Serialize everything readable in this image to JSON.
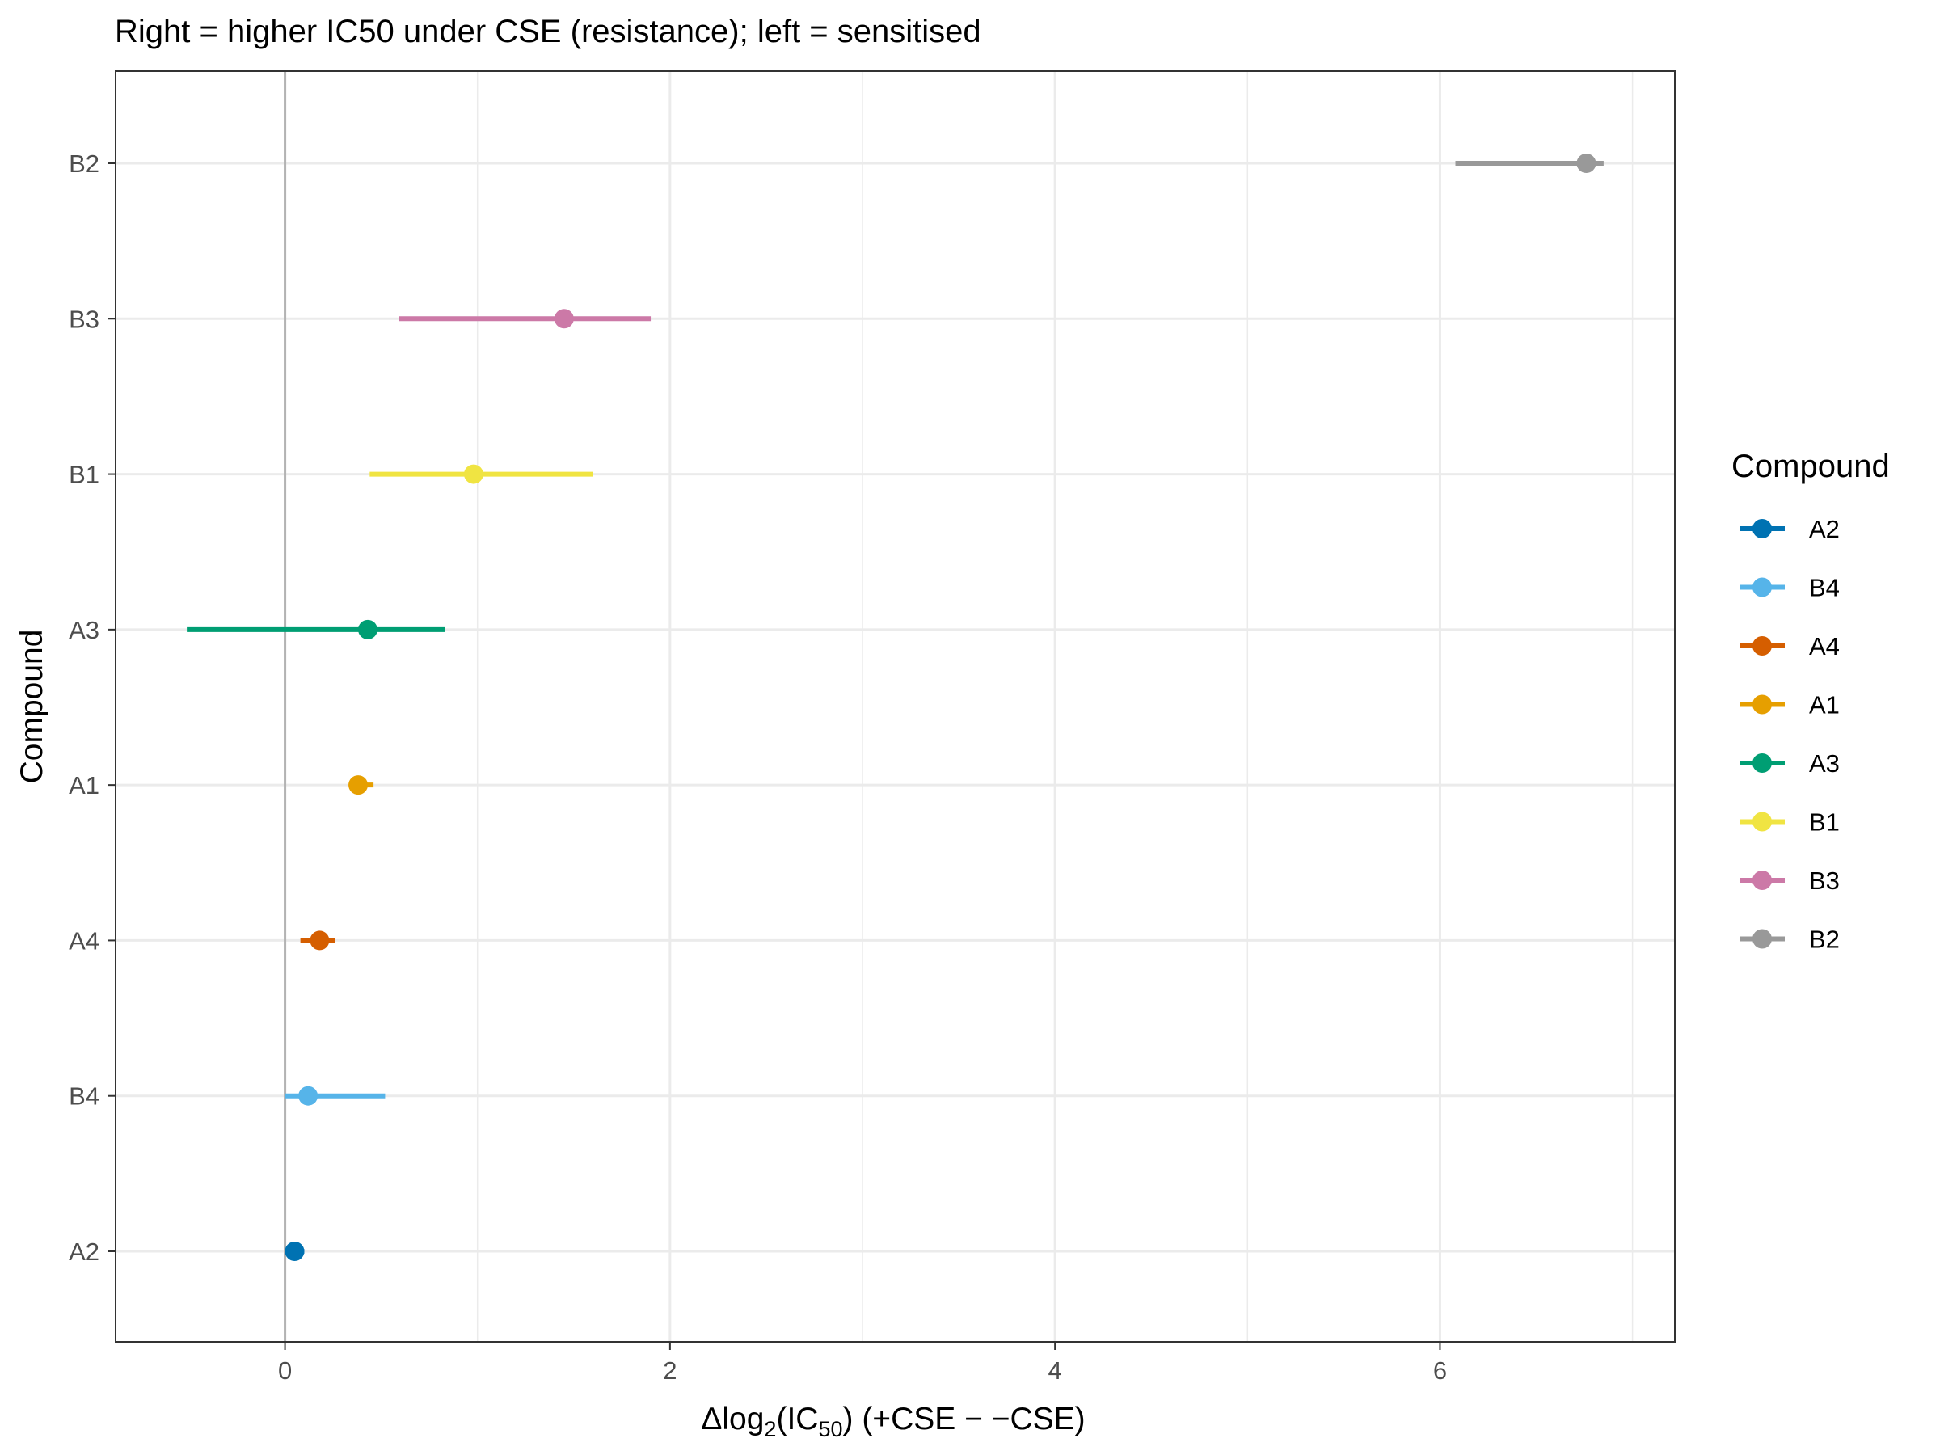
{
  "chart_data": {
    "type": "forest",
    "subtitle": "Right = higher IC50 under CSE (resistance); left = sensitised",
    "xlabel": {
      "prefix": "Δlog",
      "sub1": "2",
      "mid": "(IC",
      "sub2": "50",
      "suffix": ") (+CSE − −CSE)"
    },
    "ylabel": "Compound",
    "xlim": [
      -0.88,
      7.22
    ],
    "x_ticks": [
      0,
      2,
      4,
      6
    ],
    "x_minor_gridlines": [
      1,
      3,
      5,
      7
    ],
    "reference_line": 0,
    "grid": true,
    "legend_position": "right",
    "legend_title": "Compound",
    "categories": [
      "A2",
      "B4",
      "A4",
      "A1",
      "A3",
      "B1",
      "B3",
      "B2"
    ],
    "series": [
      {
        "name": "A2",
        "estimate": 0.05,
        "lower": 0.02,
        "upper": 0.1,
        "color": "#0072B2"
      },
      {
        "name": "B4",
        "estimate": 0.12,
        "lower": 0.0,
        "upper": 0.52,
        "color": "#56B4E9"
      },
      {
        "name": "A4",
        "estimate": 0.18,
        "lower": 0.08,
        "upper": 0.26,
        "color": "#D55E00"
      },
      {
        "name": "A1",
        "estimate": 0.38,
        "lower": 0.35,
        "upper": 0.46,
        "color": "#E69F00"
      },
      {
        "name": "A3",
        "estimate": 0.43,
        "lower": -0.51,
        "upper": 0.83,
        "color": "#009E73"
      },
      {
        "name": "B1",
        "estimate": 0.98,
        "lower": 0.44,
        "upper": 1.6,
        "color": "#F0E442"
      },
      {
        "name": "B3",
        "estimate": 1.45,
        "lower": 0.59,
        "upper": 1.9,
        "color": "#CC79A7"
      },
      {
        "name": "B2",
        "estimate": 6.76,
        "lower": 6.08,
        "upper": 6.85,
        "color": "#999999"
      }
    ]
  }
}
